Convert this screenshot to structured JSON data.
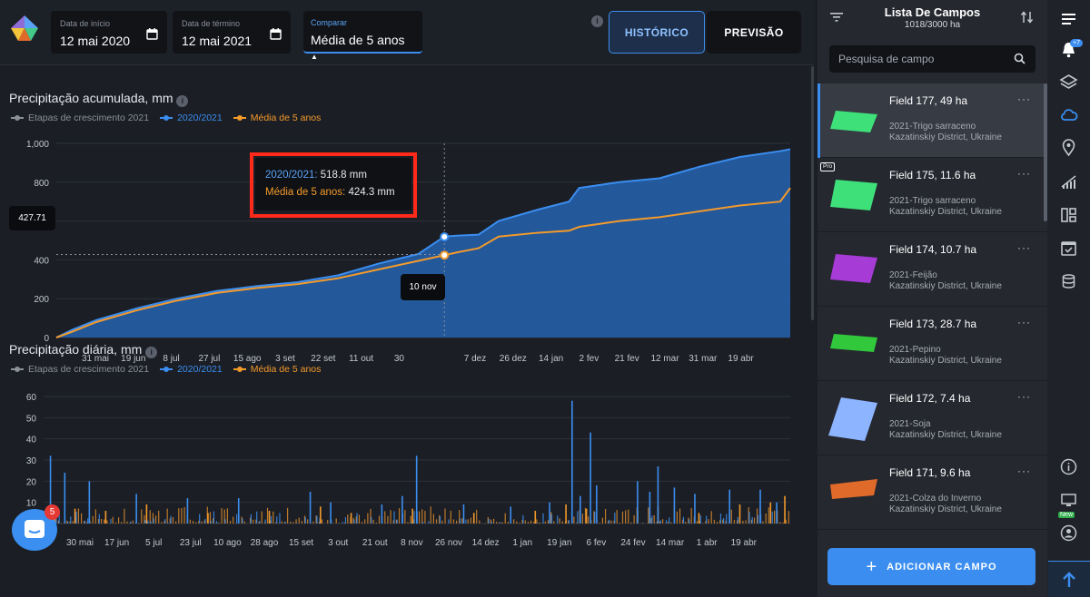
{
  "top": {
    "start": {
      "label": "Data de início",
      "value": "12 mai 2020"
    },
    "end": {
      "label": "Data de término",
      "value": "12 mai 2021"
    },
    "compare": {
      "label": "Comparar",
      "value": "Média de 5 anos"
    },
    "info_glyph": "i",
    "tabs": {
      "historico": "HISTÓRICO",
      "previsao": "PREVISÃO"
    }
  },
  "charts": {
    "accumulated": {
      "title": "Precipitação acumulada, mm",
      "legend": [
        "Etapas de crescimento 2021",
        "2020/2021",
        "Média de 5 anos"
      ]
    },
    "daily": {
      "title": "Precipitação diária, mm",
      "legend": [
        "Etapas de crescimento 2021",
        "2020/2021",
        "Média de 5 anos"
      ]
    }
  },
  "tooltip": {
    "series_a_label": "2020/2021:",
    "series_a_value": "518.8 mm",
    "series_b_label": "Média de 5 anos:",
    "series_b_value": "424.3 mm"
  },
  "crosshair": {
    "y_value": "427.71",
    "x_value": "10 nov"
  },
  "colors": {
    "current": "#3b8ef0",
    "avg": "#f39a2b",
    "stages": "#8b9099",
    "highlight": "#ff2a1a"
  },
  "chart_data": [
    {
      "type": "area",
      "title": "Precipitação acumulada, mm",
      "ylim": [
        0,
        1000
      ],
      "yticks": [
        "0",
        "200",
        "400",
        "600",
        "800",
        "1,000"
      ],
      "xticks": [
        "31 mai",
        "19 jun",
        "8 jul",
        "27 jul",
        "15 ago",
        "3 set",
        "22 set",
        "11 out",
        "30",
        "10 nov",
        "7 dez",
        "26 dez",
        "14 jan",
        "2 fev",
        "21 fev",
        "12 mar",
        "31 mar",
        "19 abr"
      ],
      "series": [
        {
          "name": "2020/2021",
          "color": "#3b8ef0",
          "x": [
            0,
            8,
            20,
            40,
            60,
            80,
            100,
            120,
            140,
            160,
            180,
            193,
            200,
            210,
            220,
            240,
            255,
            260,
            280,
            300,
            320,
            340,
            360,
            365
          ],
          "values": [
            0,
            40,
            90,
            150,
            200,
            240,
            265,
            285,
            320,
            380,
            430,
            520,
            525,
            530,
            600,
            660,
            700,
            770,
            800,
            820,
            880,
            930,
            960,
            970
          ]
        },
        {
          "name": "Média de 5 anos",
          "color": "#f39a2b",
          "x": [
            0,
            8,
            20,
            40,
            60,
            80,
            100,
            120,
            140,
            160,
            180,
            193,
            200,
            210,
            220,
            240,
            255,
            260,
            280,
            300,
            320,
            340,
            360,
            365
          ],
          "values": [
            0,
            30,
            80,
            140,
            190,
            230,
            255,
            275,
            305,
            350,
            395,
            424,
            440,
            460,
            520,
            540,
            550,
            570,
            600,
            620,
            650,
            680,
            700,
            770
          ]
        }
      ]
    },
    {
      "type": "bar",
      "title": "Precipitação diária, mm",
      "ylim": [
        0,
        60
      ],
      "yticks": [
        "0",
        "10",
        "20",
        "30",
        "40",
        "50",
        "60"
      ],
      "xticks": [
        "30 mai",
        "17 jun",
        "5 jul",
        "23 jul",
        "10 ago",
        "28 ago",
        "15 set",
        "3 out",
        "21 out",
        "8 nov",
        "26 nov",
        "14 dez",
        "1 jan",
        "19 jan",
        "6 fev",
        "24 fev",
        "14 mar",
        "1 abr",
        "19 abr"
      ],
      "series": [
        {
          "name": "2020/2021",
          "color": "#3b8ef0",
          "peaks": [
            [
              3,
              32
            ],
            [
              10,
              24
            ],
            [
              22,
              20
            ],
            [
              45,
              14
            ],
            [
              70,
              12
            ],
            [
              95,
              12
            ],
            [
              130,
              15
            ],
            [
              140,
              10
            ],
            [
              165,
              9
            ],
            [
              175,
              13
            ],
            [
              182,
              32
            ],
            [
              205,
              9
            ],
            [
              228,
              8
            ],
            [
              247,
              10
            ],
            [
              258,
              58
            ],
            [
              262,
              13
            ],
            [
              267,
              43
            ],
            [
              270,
              18
            ],
            [
              290,
              20
            ],
            [
              296,
              15
            ],
            [
              300,
              27
            ],
            [
              308,
              17
            ],
            [
              318,
              14
            ],
            [
              335,
              16
            ],
            [
              350,
              16
            ],
            [
              358,
              10
            ]
          ]
        },
        {
          "name": "Média de 5 anos",
          "color": "#f39a2b",
          "peaks": [
            [
              5,
              8
            ],
            [
              15,
              7
            ],
            [
              30,
              6
            ],
            [
              50,
              9
            ],
            [
              80,
              5
            ],
            [
              110,
              6
            ],
            [
              135,
              8
            ],
            [
              150,
              5
            ],
            [
              180,
              7
            ],
            [
              210,
              5
            ],
            [
              240,
              6
            ],
            [
              255,
              9
            ],
            [
              265,
              7
            ],
            [
              290,
              6
            ],
            [
              300,
              8
            ],
            [
              320,
              5
            ],
            [
              340,
              9
            ],
            [
              355,
              10
            ],
            [
              362,
              13
            ]
          ]
        }
      ]
    }
  ],
  "panel": {
    "title": "Lista De Campos",
    "subtitle": "1018/3000 ha",
    "search_placeholder": "Pesquisa de campo",
    "more_glyph": "···",
    "pro_tag": "Pro",
    "fields": [
      {
        "name": "Field 177, 49 ha",
        "crop": "2021-Trigo sarraceno",
        "district": "Kazatinskiy District, Ukraine",
        "color": "#3ee07a"
      },
      {
        "name": "Field 175, 11.6 ha",
        "crop": "2021-Trigo sarraceno",
        "district": "Kazatinskiy District, Ukraine",
        "color": "#3ee07a"
      },
      {
        "name": "Field 174, 10.7 ha",
        "crop": "2021-Feijão",
        "district": "Kazatinskiy District, Ukraine",
        "color": "#a63bd6"
      },
      {
        "name": "Field 173, 28.7 ha",
        "crop": "2021-Pepino",
        "district": "Kazatinskiy District, Ukraine",
        "color": "#32c83c"
      },
      {
        "name": "Field 172, 7.4 ha",
        "crop": "2021-Soja",
        "district": "Kazatinskiy District, Ukraine",
        "color": "#8db5ff"
      },
      {
        "name": "Field 171, 9.6 ha",
        "crop": "2021-Colza do Inverno",
        "district": "Kazatinskiy District, Ukraine",
        "color": "#e06a2a"
      }
    ],
    "add_label": "ADICIONAR CAMPO"
  },
  "rail": {
    "notif_count": "+7",
    "new_label": "New"
  },
  "chat_badge": "5"
}
